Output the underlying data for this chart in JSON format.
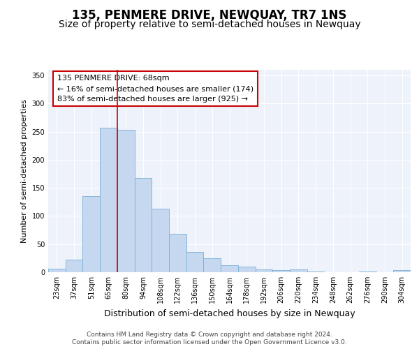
{
  "title": "135, PENMERE DRIVE, NEWQUAY, TR7 1NS",
  "subtitle": "Size of property relative to semi-detached houses in Newquay",
  "xlabel": "Distribution of semi-detached houses by size in Newquay",
  "ylabel": "Number of semi-detached properties",
  "footer1": "Contains HM Land Registry data © Crown copyright and database right 2024.",
  "footer2": "Contains public sector information licensed under the Open Government Licence v3.0.",
  "annotation_line1": "135 PENMERE DRIVE: 68sqm",
  "annotation_line2": "← 16% of semi-detached houses are smaller (174)",
  "annotation_line3": "83% of semi-detached houses are larger (925) →",
  "bar_labels": [
    "23sqm",
    "37sqm",
    "51sqm",
    "65sqm",
    "80sqm",
    "94sqm",
    "108sqm",
    "122sqm",
    "136sqm",
    "150sqm",
    "164sqm",
    "178sqm",
    "192sqm",
    "206sqm",
    "220sqm",
    "234sqm",
    "248sqm",
    "262sqm",
    "276sqm",
    "290sqm",
    "304sqm"
  ],
  "bar_values": [
    6,
    22,
    135,
    257,
    253,
    168,
    113,
    68,
    36,
    25,
    13,
    10,
    5,
    4,
    5,
    1,
    0,
    0,
    1,
    0,
    4
  ],
  "bar_color": "#c5d8f0",
  "bar_edge_color": "#7aafd4",
  "vline_color": "#cc0000",
  "vline_x": 3.5,
  "ylim": [
    0,
    360
  ],
  "background_color": "#edf2fb",
  "grid_color": "#ffffff",
  "annotation_box_facecolor": "#ffffff",
  "annotation_box_edgecolor": "#cc0000",
  "title_fontsize": 12,
  "subtitle_fontsize": 10,
  "xlabel_fontsize": 9,
  "ylabel_fontsize": 8,
  "tick_fontsize": 7,
  "annotation_fontsize": 8,
  "footer_fontsize": 6.5
}
